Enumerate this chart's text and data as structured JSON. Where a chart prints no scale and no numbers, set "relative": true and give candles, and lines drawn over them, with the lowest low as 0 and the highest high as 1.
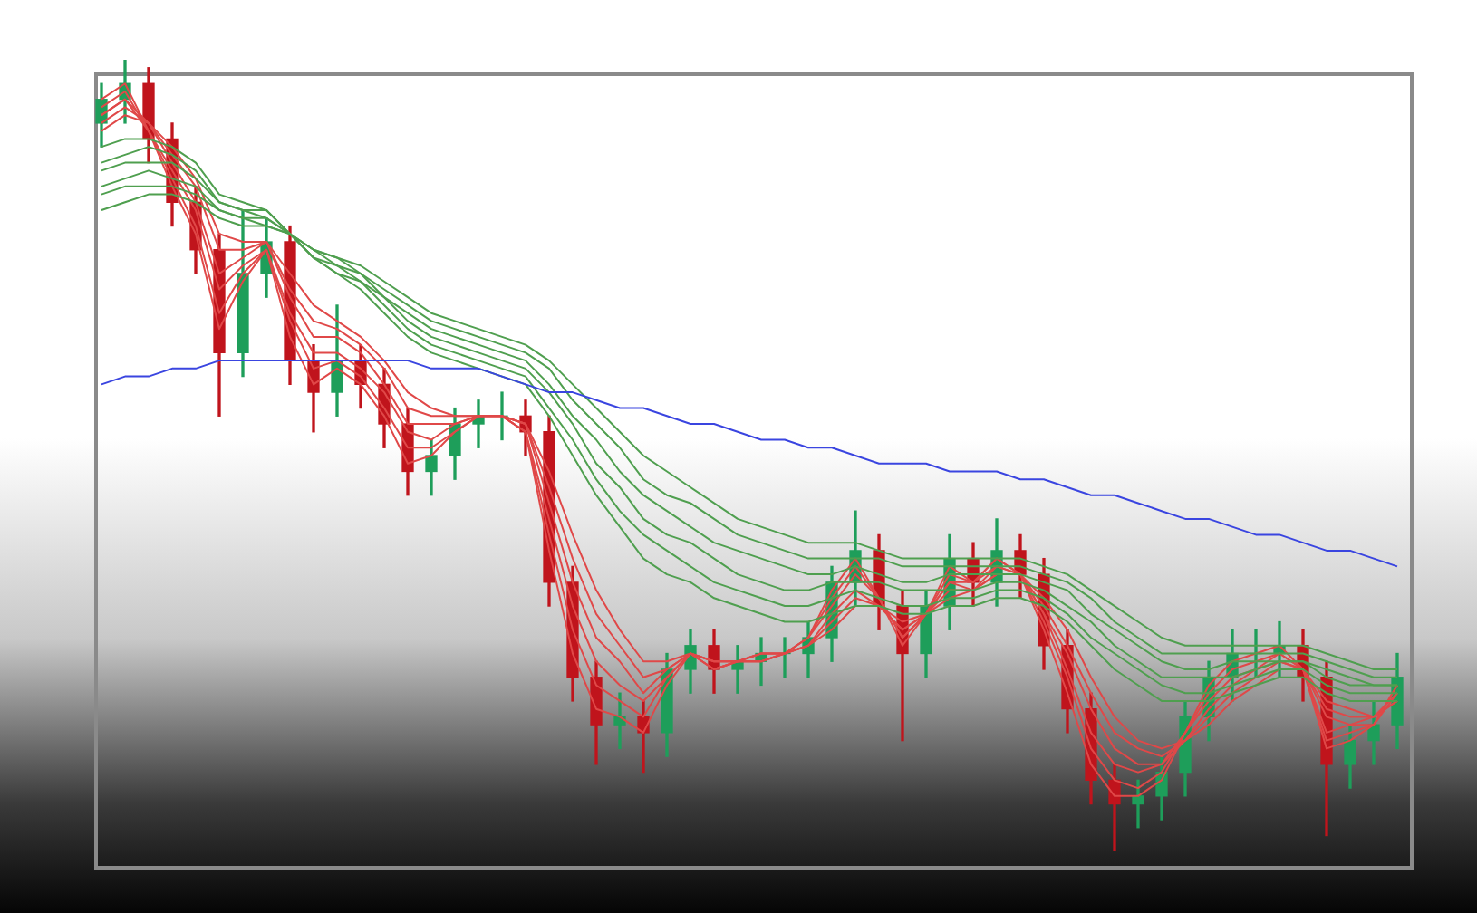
{
  "chart_data": {
    "type": "candlestick",
    "relative": true,
    "tick_labels": false,
    "categories": [
      null,
      null,
      null,
      null,
      null,
      null,
      null,
      null,
      null,
      null,
      null,
      null,
      null,
      null,
      null,
      null,
      null,
      null,
      null,
      null,
      null,
      null,
      null,
      null,
      null,
      null,
      null,
      null,
      null,
      null,
      null,
      null,
      null,
      null,
      null,
      null,
      null,
      null,
      null,
      null,
      null,
      null,
      null,
      null,
      null,
      null,
      null,
      null,
      null,
      null,
      null,
      null,
      null,
      null,
      null,
      null
    ],
    "ohlc": [
      [
        0.92,
        0.97,
        0.89,
        0.95
      ],
      [
        0.95,
        1.0,
        0.92,
        0.97
      ],
      [
        0.97,
        0.99,
        0.87,
        0.9
      ],
      [
        0.9,
        0.92,
        0.79,
        0.82
      ],
      [
        0.82,
        0.84,
        0.73,
        0.76
      ],
      [
        0.76,
        0.78,
        0.55,
        0.63
      ],
      [
        0.63,
        0.81,
        0.6,
        0.73
      ],
      [
        0.73,
        0.8,
        0.7,
        0.77
      ],
      [
        0.77,
        0.79,
        0.59,
        0.62
      ],
      [
        0.62,
        0.64,
        0.53,
        0.58
      ],
      [
        0.58,
        0.69,
        0.55,
        0.62
      ],
      [
        0.62,
        0.64,
        0.56,
        0.59
      ],
      [
        0.59,
        0.61,
        0.51,
        0.54
      ],
      [
        0.54,
        0.56,
        0.45,
        0.48
      ],
      [
        0.48,
        0.52,
        0.45,
        0.5
      ],
      [
        0.5,
        0.56,
        0.47,
        0.54
      ],
      [
        0.54,
        0.57,
        0.51,
        0.55
      ],
      [
        0.55,
        0.58,
        0.52,
        0.55
      ],
      [
        0.55,
        0.57,
        0.5,
        0.53
      ],
      [
        0.53,
        0.55,
        0.31,
        0.34
      ],
      [
        0.34,
        0.36,
        0.19,
        0.22
      ],
      [
        0.22,
        0.24,
        0.11,
        0.16
      ],
      [
        0.16,
        0.2,
        0.13,
        0.17
      ],
      [
        0.17,
        0.19,
        0.1,
        0.15
      ],
      [
        0.15,
        0.25,
        0.12,
        0.23
      ],
      [
        0.23,
        0.28,
        0.2,
        0.26
      ],
      [
        0.26,
        0.28,
        0.2,
        0.23
      ],
      [
        0.23,
        0.26,
        0.2,
        0.24
      ],
      [
        0.24,
        0.27,
        0.21,
        0.25
      ],
      [
        0.25,
        0.27,
        0.22,
        0.25
      ],
      [
        0.25,
        0.29,
        0.22,
        0.27
      ],
      [
        0.27,
        0.36,
        0.24,
        0.34
      ],
      [
        0.34,
        0.43,
        0.31,
        0.38
      ],
      [
        0.38,
        0.4,
        0.28,
        0.31
      ],
      [
        0.31,
        0.33,
        0.14,
        0.25
      ],
      [
        0.25,
        0.33,
        0.22,
        0.31
      ],
      [
        0.31,
        0.4,
        0.28,
        0.37
      ],
      [
        0.37,
        0.39,
        0.31,
        0.34
      ],
      [
        0.34,
        0.42,
        0.31,
        0.38
      ],
      [
        0.38,
        0.4,
        0.32,
        0.35
      ],
      [
        0.35,
        0.37,
        0.23,
        0.26
      ],
      [
        0.26,
        0.28,
        0.15,
        0.18
      ],
      [
        0.18,
        0.2,
        0.06,
        0.09
      ],
      [
        0.09,
        0.11,
        0.0,
        0.06
      ],
      [
        0.06,
        0.09,
        0.03,
        0.07
      ],
      [
        0.07,
        0.12,
        0.04,
        0.1
      ],
      [
        0.1,
        0.19,
        0.07,
        0.17
      ],
      [
        0.17,
        0.24,
        0.14,
        0.22
      ],
      [
        0.22,
        0.28,
        0.19,
        0.25
      ],
      [
        0.25,
        0.28,
        0.22,
        0.25
      ],
      [
        0.25,
        0.29,
        0.22,
        0.26
      ],
      [
        0.26,
        0.28,
        0.19,
        0.22
      ],
      [
        0.22,
        0.24,
        0.02,
        0.11
      ],
      [
        0.11,
        0.16,
        0.08,
        0.14
      ],
      [
        0.14,
        0.19,
        0.11,
        0.16
      ],
      [
        0.16,
        0.25,
        0.13,
        0.22
      ]
    ],
    "colors": [
      "#1e9e5a",
      "#1e9e5a",
      "#c0141c",
      "#c0141c",
      "#c0141c",
      "#c0141c",
      "#1e9e5a",
      "#1e9e5a",
      "#c0141c",
      "#c0141c",
      "#1e9e5a",
      "#c0141c",
      "#c0141c",
      "#c0141c",
      "#1e9e5a",
      "#1e9e5a",
      "#1e9e5a",
      "#1e9e5a",
      "#c0141c",
      "#c0141c",
      "#c0141c",
      "#c0141c",
      "#1e9e5a",
      "#c0141c",
      "#1e9e5a",
      "#1e9e5a",
      "#c0141c",
      "#1e9e5a",
      "#1e9e5a",
      "#1e9e5a",
      "#1e9e5a",
      "#1e9e5a",
      "#1e9e5a",
      "#c0141c",
      "#c0141c",
      "#1e9e5a",
      "#1e9e5a",
      "#c0141c",
      "#1e9e5a",
      "#c0141c",
      "#c0141c",
      "#c0141c",
      "#c0141c",
      "#c0141c",
      "#1e9e5a",
      "#1e9e5a",
      "#1e9e5a",
      "#1e9e5a",
      "#1e9e5a",
      "#1e9e5a",
      "#1e9e5a",
      "#c0141c",
      "#c0141c",
      "#1e9e5a",
      "#1e9e5a",
      "#1e9e5a"
    ],
    "series": [
      {
        "type": "line",
        "color": "#3a45e0",
        "values": [
          0.59,
          0.6,
          0.6,
          0.61,
          0.61,
          0.62,
          0.62,
          0.62,
          0.62,
          0.62,
          0.62,
          0.62,
          0.62,
          0.62,
          0.61,
          0.61,
          0.61,
          0.6,
          0.59,
          0.58,
          0.58,
          0.57,
          0.56,
          0.56,
          0.55,
          0.54,
          0.54,
          0.53,
          0.52,
          0.52,
          0.51,
          0.51,
          0.5,
          0.49,
          0.49,
          0.49,
          0.48,
          0.48,
          0.48,
          0.47,
          0.47,
          0.46,
          0.45,
          0.45,
          0.44,
          0.43,
          0.42,
          0.42,
          0.41,
          0.4,
          0.4,
          0.39,
          0.38,
          0.38,
          0.37,
          0.36
        ]
      },
      {
        "type": "line",
        "color": "#4f9f4f",
        "values": [
          0.89,
          0.9,
          0.9,
          0.89,
          0.87,
          0.83,
          0.82,
          0.81,
          0.78,
          0.75,
          0.73,
          0.71,
          0.68,
          0.65,
          0.63,
          0.62,
          0.61,
          0.6,
          0.59,
          0.55,
          0.5,
          0.45,
          0.41,
          0.37,
          0.35,
          0.34,
          0.32,
          0.31,
          0.3,
          0.29,
          0.29,
          0.3,
          0.31,
          0.31,
          0.3,
          0.3,
          0.31,
          0.31,
          0.32,
          0.32,
          0.31,
          0.29,
          0.26,
          0.23,
          0.21,
          0.19,
          0.19,
          0.19,
          0.2,
          0.21,
          0.22,
          0.22,
          0.2,
          0.19,
          0.19,
          0.19
        ]
      },
      {
        "type": "line",
        "color": "#4f9f4f",
        "values": [
          0.87,
          0.88,
          0.89,
          0.88,
          0.86,
          0.82,
          0.81,
          0.81,
          0.78,
          0.75,
          0.73,
          0.72,
          0.69,
          0.66,
          0.64,
          0.63,
          0.62,
          0.61,
          0.6,
          0.56,
          0.52,
          0.47,
          0.43,
          0.4,
          0.38,
          0.36,
          0.34,
          0.33,
          0.32,
          0.31,
          0.31,
          0.32,
          0.33,
          0.32,
          0.31,
          0.31,
          0.32,
          0.32,
          0.33,
          0.33,
          0.32,
          0.3,
          0.27,
          0.25,
          0.23,
          0.21,
          0.2,
          0.2,
          0.21,
          0.22,
          0.23,
          0.23,
          0.21,
          0.2,
          0.2,
          0.2
        ]
      },
      {
        "type": "line",
        "color": "#4f9f4f",
        "values": [
          0.86,
          0.87,
          0.87,
          0.87,
          0.85,
          0.82,
          0.81,
          0.8,
          0.78,
          0.75,
          0.74,
          0.72,
          0.7,
          0.67,
          0.65,
          0.64,
          0.63,
          0.62,
          0.61,
          0.58,
          0.54,
          0.49,
          0.46,
          0.42,
          0.4,
          0.39,
          0.37,
          0.35,
          0.34,
          0.33,
          0.33,
          0.34,
          0.34,
          0.34,
          0.33,
          0.33,
          0.33,
          0.33,
          0.34,
          0.34,
          0.33,
          0.31,
          0.29,
          0.26,
          0.24,
          0.22,
          0.22,
          0.22,
          0.22,
          0.23,
          0.24,
          0.24,
          0.22,
          0.21,
          0.21,
          0.21
        ]
      },
      {
        "type": "line",
        "color": "#4f9f4f",
        "values": [
          0.84,
          0.85,
          0.86,
          0.85,
          0.84,
          0.81,
          0.8,
          0.8,
          0.78,
          0.76,
          0.74,
          0.73,
          0.7,
          0.68,
          0.66,
          0.65,
          0.64,
          0.63,
          0.62,
          0.59,
          0.55,
          0.52,
          0.48,
          0.45,
          0.43,
          0.41,
          0.39,
          0.38,
          0.37,
          0.36,
          0.35,
          0.35,
          0.36,
          0.35,
          0.34,
          0.34,
          0.35,
          0.35,
          0.35,
          0.35,
          0.34,
          0.33,
          0.3,
          0.28,
          0.26,
          0.24,
          0.23,
          0.23,
          0.24,
          0.24,
          0.24,
          0.24,
          0.23,
          0.22,
          0.21,
          0.21
        ]
      },
      {
        "type": "line",
        "color": "#4f9f4f",
        "values": [
          0.83,
          0.84,
          0.84,
          0.84,
          0.83,
          0.81,
          0.8,
          0.79,
          0.78,
          0.76,
          0.75,
          0.73,
          0.71,
          0.69,
          0.67,
          0.66,
          0.65,
          0.64,
          0.63,
          0.61,
          0.57,
          0.54,
          0.51,
          0.47,
          0.45,
          0.44,
          0.42,
          0.4,
          0.39,
          0.38,
          0.37,
          0.37,
          0.37,
          0.37,
          0.36,
          0.36,
          0.36,
          0.36,
          0.36,
          0.36,
          0.35,
          0.34,
          0.32,
          0.29,
          0.27,
          0.25,
          0.25,
          0.25,
          0.25,
          0.25,
          0.25,
          0.25,
          0.24,
          0.23,
          0.22,
          0.22
        ]
      },
      {
        "type": "line",
        "color": "#4f9f4f",
        "values": [
          0.81,
          0.82,
          0.83,
          0.83,
          0.82,
          0.8,
          0.79,
          0.79,
          0.78,
          0.76,
          0.75,
          0.74,
          0.72,
          0.7,
          0.68,
          0.67,
          0.66,
          0.65,
          0.64,
          0.62,
          0.59,
          0.56,
          0.53,
          0.5,
          0.48,
          0.46,
          0.44,
          0.42,
          0.41,
          0.4,
          0.39,
          0.39,
          0.39,
          0.38,
          0.37,
          0.37,
          0.37,
          0.37,
          0.37,
          0.37,
          0.36,
          0.35,
          0.33,
          0.31,
          0.29,
          0.27,
          0.26,
          0.26,
          0.26,
          0.26,
          0.26,
          0.26,
          0.25,
          0.24,
          0.23,
          0.23
        ]
      },
      {
        "type": "line",
        "color": "#e04848",
        "values": [
          0.95,
          0.97,
          0.91,
          0.84,
          0.78,
          0.66,
          0.72,
          0.76,
          0.65,
          0.59,
          0.61,
          0.59,
          0.55,
          0.49,
          0.5,
          0.53,
          0.55,
          0.55,
          0.53,
          0.38,
          0.25,
          0.18,
          0.17,
          0.15,
          0.21,
          0.25,
          0.23,
          0.24,
          0.25,
          0.25,
          0.27,
          0.33,
          0.37,
          0.32,
          0.26,
          0.3,
          0.36,
          0.34,
          0.37,
          0.35,
          0.28,
          0.2,
          0.11,
          0.07,
          0.07,
          0.09,
          0.15,
          0.21,
          0.24,
          0.25,
          0.26,
          0.23,
          0.13,
          0.14,
          0.16,
          0.21
        ]
      },
      {
        "type": "line",
        "color": "#e04848",
        "values": [
          0.94,
          0.96,
          0.91,
          0.85,
          0.79,
          0.68,
          0.73,
          0.76,
          0.67,
          0.61,
          0.62,
          0.6,
          0.56,
          0.51,
          0.51,
          0.53,
          0.55,
          0.55,
          0.53,
          0.4,
          0.28,
          0.21,
          0.19,
          0.17,
          0.22,
          0.25,
          0.23,
          0.24,
          0.25,
          0.25,
          0.27,
          0.32,
          0.36,
          0.32,
          0.27,
          0.3,
          0.35,
          0.34,
          0.37,
          0.35,
          0.29,
          0.22,
          0.13,
          0.09,
          0.08,
          0.1,
          0.15,
          0.2,
          0.23,
          0.24,
          0.25,
          0.23,
          0.14,
          0.15,
          0.16,
          0.21
        ]
      },
      {
        "type": "line",
        "color": "#e04848",
        "values": [
          0.93,
          0.95,
          0.91,
          0.86,
          0.81,
          0.71,
          0.74,
          0.76,
          0.68,
          0.63,
          0.63,
          0.61,
          0.58,
          0.53,
          0.52,
          0.54,
          0.55,
          0.55,
          0.53,
          0.42,
          0.31,
          0.24,
          0.21,
          0.19,
          0.22,
          0.25,
          0.23,
          0.24,
          0.25,
          0.25,
          0.27,
          0.31,
          0.35,
          0.32,
          0.27,
          0.3,
          0.34,
          0.34,
          0.36,
          0.35,
          0.3,
          0.23,
          0.15,
          0.11,
          0.1,
          0.11,
          0.15,
          0.19,
          0.22,
          0.23,
          0.25,
          0.23,
          0.15,
          0.16,
          0.16,
          0.2
        ]
      },
      {
        "type": "line",
        "color": "#e04848",
        "values": [
          0.93,
          0.95,
          0.92,
          0.87,
          0.82,
          0.73,
          0.75,
          0.77,
          0.7,
          0.65,
          0.65,
          0.63,
          0.59,
          0.54,
          0.54,
          0.54,
          0.55,
          0.55,
          0.54,
          0.44,
          0.34,
          0.27,
          0.24,
          0.2,
          0.23,
          0.25,
          0.24,
          0.24,
          0.24,
          0.25,
          0.26,
          0.3,
          0.33,
          0.31,
          0.28,
          0.3,
          0.34,
          0.33,
          0.36,
          0.35,
          0.3,
          0.25,
          0.18,
          0.13,
          0.11,
          0.11,
          0.14,
          0.18,
          0.21,
          0.23,
          0.24,
          0.23,
          0.17,
          0.16,
          0.17,
          0.2
        ]
      },
      {
        "type": "line",
        "color": "#e04848",
        "values": [
          0.92,
          0.94,
          0.92,
          0.88,
          0.84,
          0.76,
          0.76,
          0.77,
          0.71,
          0.67,
          0.66,
          0.64,
          0.61,
          0.56,
          0.55,
          0.55,
          0.55,
          0.55,
          0.54,
          0.46,
          0.37,
          0.3,
          0.26,
          0.22,
          0.23,
          0.25,
          0.24,
          0.24,
          0.24,
          0.25,
          0.26,
          0.29,
          0.32,
          0.31,
          0.28,
          0.3,
          0.33,
          0.33,
          0.35,
          0.35,
          0.31,
          0.26,
          0.2,
          0.15,
          0.13,
          0.12,
          0.14,
          0.17,
          0.2,
          0.22,
          0.24,
          0.23,
          0.18,
          0.17,
          0.17,
          0.19
        ]
      },
      {
        "type": "line",
        "color": "#e04848",
        "values": [
          0.91,
          0.93,
          0.92,
          0.89,
          0.85,
          0.78,
          0.77,
          0.77,
          0.73,
          0.69,
          0.67,
          0.65,
          0.62,
          0.58,
          0.56,
          0.55,
          0.55,
          0.55,
          0.54,
          0.48,
          0.4,
          0.33,
          0.28,
          0.24,
          0.24,
          0.25,
          0.24,
          0.24,
          0.24,
          0.25,
          0.26,
          0.28,
          0.31,
          0.31,
          0.29,
          0.3,
          0.32,
          0.33,
          0.35,
          0.35,
          0.32,
          0.28,
          0.22,
          0.17,
          0.14,
          0.13,
          0.14,
          0.16,
          0.19,
          0.21,
          0.23,
          0.23,
          0.19,
          0.18,
          0.17,
          0.19
        ]
      }
    ]
  }
}
